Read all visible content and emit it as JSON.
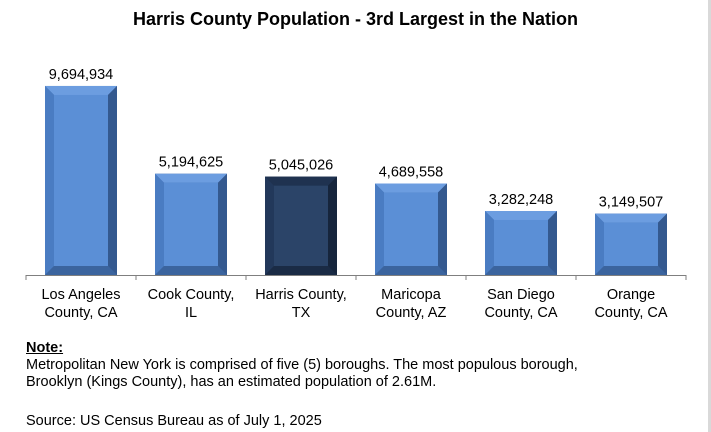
{
  "chart_data": {
    "type": "bar",
    "title": "Harris County Population - 3rd Largest in the Nation",
    "categories": [
      [
        "Los Angeles",
        "County, CA"
      ],
      [
        "Cook County,",
        "IL"
      ],
      [
        "Harris County,",
        "TX"
      ],
      [
        "Maricopa",
        "County, AZ"
      ],
      [
        "San Diego",
        "County, CA"
      ],
      [
        "Orange",
        "County, CA"
      ]
    ],
    "values": [
      9694934,
      5194625,
      5045026,
      4689558,
      3282248,
      3149507
    ],
    "value_labels": [
      "9,694,934",
      "5,194,625",
      "5,045,026",
      "4,689,558",
      "3,282,248",
      "3,149,507"
    ],
    "highlight_index": 2,
    "ylim": [
      0,
      10000000
    ],
    "grid": false,
    "legend": "none"
  },
  "colors": {
    "bar_face": "#5b8fd6",
    "bar_side": "#3f6aa8",
    "bar_edge": "#2f4f80",
    "highlight_face": "#2b4468",
    "highlight_side": "#1c2f4b",
    "axis": "#7f7f7f"
  },
  "note": {
    "heading": "Note:",
    "line1": "Metropolitan New York is comprised of five (5) boroughs. The most populous borough,",
    "line2": "Brooklyn (Kings County), has an estimated population of 2.61M."
  },
  "source": "Source: US Census Bureau as of July 1, 2025"
}
